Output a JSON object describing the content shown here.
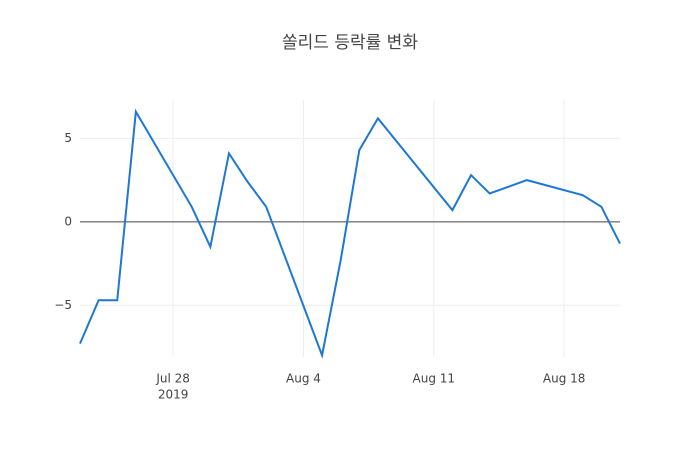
{
  "chart_data": {
    "type": "line",
    "title": "쏠리드 등락률 변화",
    "x": [
      "2019-07-23",
      "2019-07-24",
      "2019-07-25",
      "2019-07-26",
      "2019-07-29",
      "2019-07-30",
      "2019-07-31",
      "2019-08-01",
      "2019-08-02",
      "2019-08-05",
      "2019-08-06",
      "2019-08-07",
      "2019-08-08",
      "2019-08-12",
      "2019-08-13",
      "2019-08-14",
      "2019-08-16",
      "2019-08-19",
      "2019-08-20",
      "2019-08-21"
    ],
    "series": [
      {
        "color": "#1f77d4",
        "values": [
          -7.3,
          -4.7,
          -4.7,
          6.6,
          0.9,
          -1.5,
          4.1,
          2.4,
          0.9,
          -8.0,
          -2.3,
          4.3,
          6.2,
          0.7,
          2.8,
          1.7,
          2.5,
          1.6,
          0.9,
          -1.3
        ]
      }
    ],
    "xlim": [
      "2019-07-23",
      "2019-08-21"
    ],
    "xticks": [
      {
        "value": "2019-07-28",
        "label": "Jul 28"
      },
      {
        "value": "2019-08-04",
        "label": "Aug 4"
      },
      {
        "value": "2019-08-11",
        "label": "Aug 11"
      },
      {
        "value": "2019-08-18",
        "label": "Aug 18"
      }
    ],
    "x_year_label": "2019",
    "ylim": [
      -8.1,
      7.3
    ],
    "yticks": [
      {
        "value": -5,
        "label": "−5"
      },
      0,
      5
    ],
    "grid": true,
    "zero_line": true
  }
}
